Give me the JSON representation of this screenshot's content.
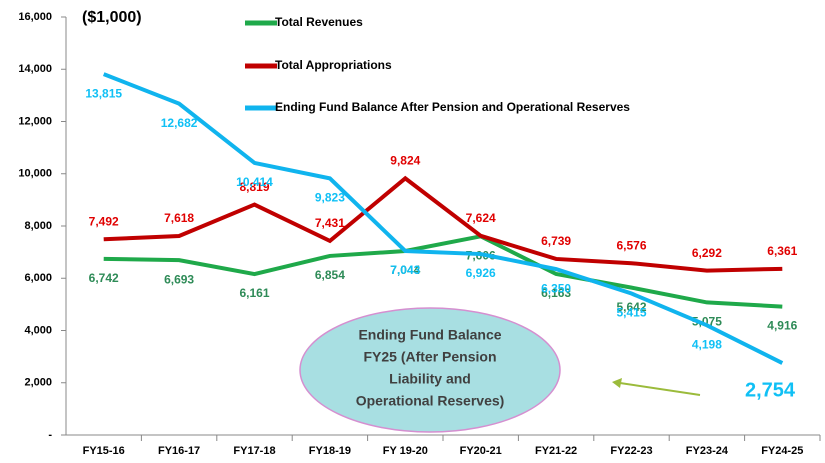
{
  "chart_data": {
    "type": "line",
    "unit_label": "($1,000)",
    "categories": [
      "FY15-16",
      "FY16-17",
      "FY17-18",
      "FY18-19",
      "FY 19-20",
      "FY20-21",
      "FY21-22",
      "FY22-23",
      "FY23-24",
      "FY24-25"
    ],
    "series": [
      {
        "name": "Total Revenues",
        "color": "#1fa94a",
        "label_color": "#2e8b57",
        "values": [
          6742,
          6693,
          6161,
          6854,
          7044,
          7606,
          6163,
          5642,
          5075,
          4916
        ]
      },
      {
        "name": "Total Appropriations",
        "color": "#c00000",
        "label_color": "#e00000",
        "values": [
          7492,
          7618,
          8819,
          7431,
          9824,
          7624,
          6739,
          6576,
          6292,
          6361
        ]
      },
      {
        "name": "Ending Fund Balance After Pension and Operational Reserves",
        "color": "#10b4ee",
        "label_color": "#10c0f5",
        "values": [
          13815,
          12682,
          10414,
          9823,
          7043,
          6926,
          6350,
          5415,
          4198,
          2754
        ]
      }
    ],
    "ylim": [
      0,
      16000
    ],
    "yticks": [
      {
        "value": 0,
        "label": "-"
      },
      {
        "value": 2000,
        "label": "2,000"
      },
      {
        "value": 4000,
        "label": "4,000"
      },
      {
        "value": 6000,
        "label": "6,000"
      },
      {
        "value": 8000,
        "label": "8,000"
      },
      {
        "value": 10000,
        "label": "10,000"
      },
      {
        "value": 12000,
        "label": "12,000"
      },
      {
        "value": 14000,
        "label": "14,000"
      },
      {
        "value": 16000,
        "label": "16,000"
      }
    ],
    "annotation": {
      "lines": [
        "Ending Fund Balance",
        "FY25 (After Pension",
        "Liability and",
        "Operational  Reserves)"
      ]
    }
  }
}
